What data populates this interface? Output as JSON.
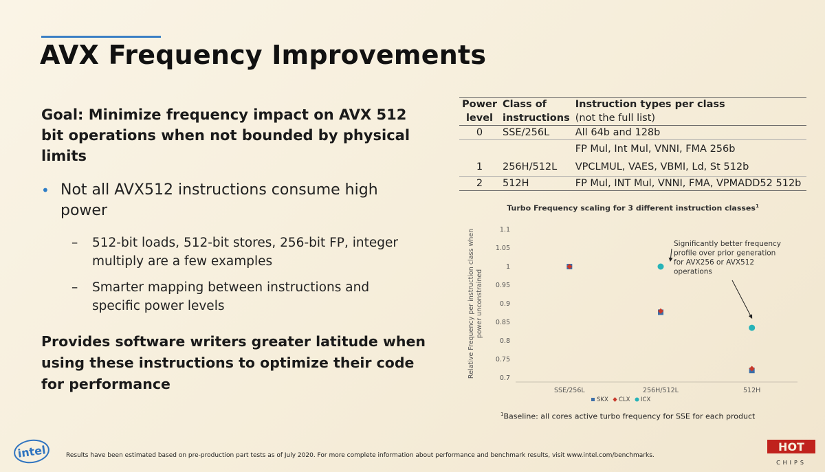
{
  "slide": {
    "title": "AVX Frequency Improvements",
    "goal": "Goal:  Minimize frequency impact on AVX 512 bit operations when not bounded by physical limits",
    "bullet": "Not all AVX512 instructions consume high power",
    "subbullets": [
      "512-bit loads, 512-bit stores, 256-bit FP, integer multiply are a few examples",
      "Smarter mapping between instructions and specific power levels"
    ],
    "provides": "Provides software writers greater latitude when using these instructions to optimize their code for performance",
    "disclaimer": "Results have been estimated based on pre-production part tests as of July 2020. For more complete information about performance and benchmark results, visit www.intel.com/benchmarks.",
    "logo_text": "intel",
    "hotchips_text": "HOT CHIPS"
  },
  "table": {
    "headers": {
      "power_level_1": "Power",
      "power_level_2": "level",
      "class_1": "Class of",
      "class_2": "instructions",
      "types_1": "Instruction types per class",
      "types_2": "(not the full list)"
    },
    "rows": [
      {
        "level": "0",
        "class": "SSE/256L",
        "types": "All 64b and 128b"
      },
      {
        "level": "1",
        "class": "256H/512L",
        "types_line1": "FP Mul, Int Mul, VNNI, FMA 256b",
        "types_line2": "VPCLMUL, VAES, VBMI, Ld, St 512b"
      },
      {
        "level": "2",
        "class": "512H",
        "types": "FP Mul, INT Mul, VNNI, FMA, VPMADD52 512b"
      }
    ]
  },
  "chart_data": {
    "type": "scatter",
    "title": "Turbo Frequency scaling for 3 different instruction classes",
    "title_footnote_mark": "1",
    "ylabel_line1": "Relative Frequency per instruction class when",
    "ylabel_line2": "power unconstrained",
    "categories": [
      "SSE/256L",
      "256H/512L",
      "512H"
    ],
    "yticks": [
      "1.1",
      "1.05",
      "1",
      "0.95",
      "0.9",
      "0.85",
      "0.8",
      "0.75",
      "0.7"
    ],
    "ylim": [
      0.7,
      1.1
    ],
    "series": [
      {
        "name": "SKX",
        "color": "#3d6fa8",
        "marker": "square",
        "values": [
          1.0,
          0.877,
          0.72
        ]
      },
      {
        "name": "CLX",
        "color": "#c8392b",
        "marker": "diamond",
        "values": [
          1.0,
          0.88,
          0.725
        ]
      },
      {
        "name": "ICX",
        "color": "#27b3b8",
        "marker": "circle",
        "values": [
          1.0,
          1.0,
          0.835
        ]
      }
    ],
    "annotation": [
      "Significantly better frequency",
      "profile over prior generation",
      "for AVX256 or AVX512",
      "operations"
    ],
    "legend_position": "bottom",
    "grid": "horizontal-baseline"
  },
  "footnote": {
    "mark": "1",
    "text": "Baseline: all cores active turbo frequency for SSE for each product"
  }
}
